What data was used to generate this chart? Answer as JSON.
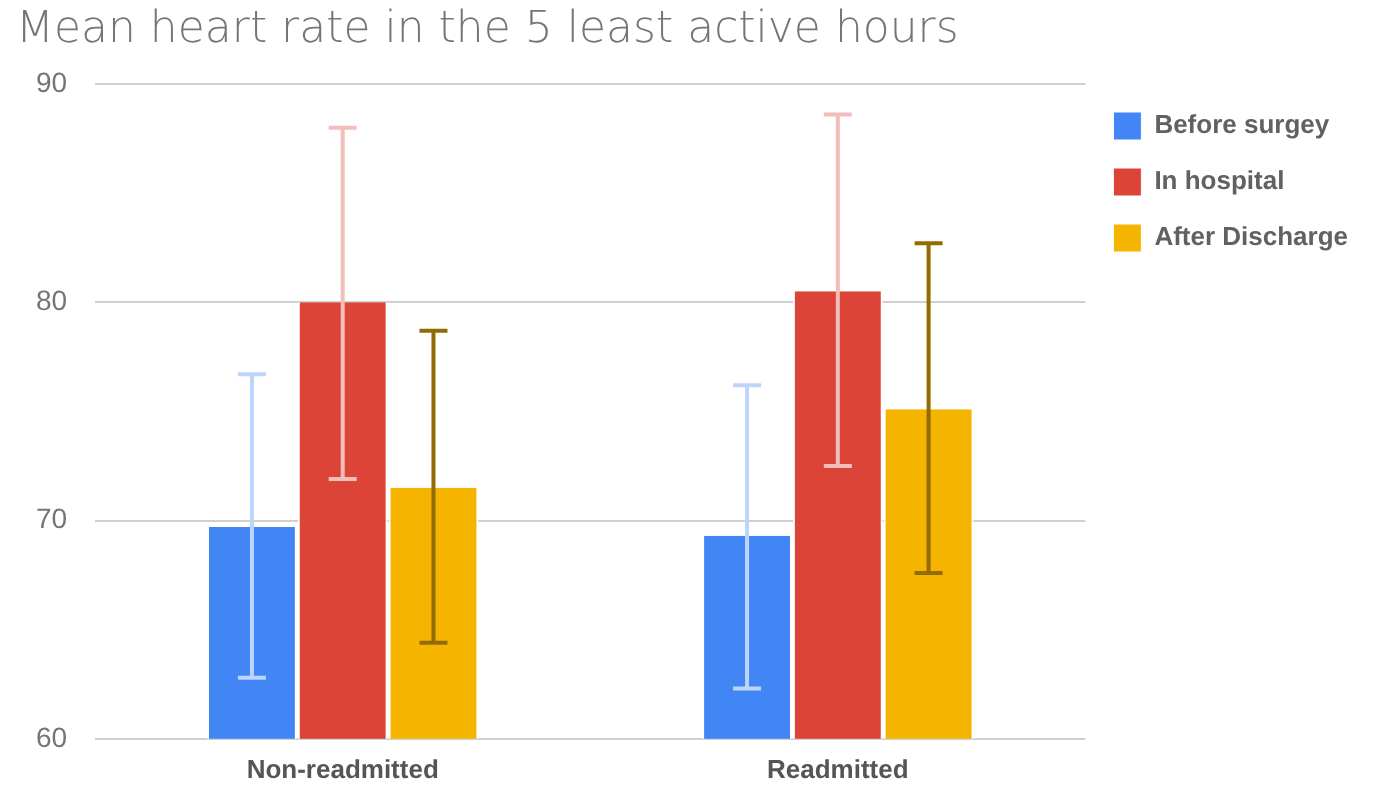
{
  "chart_data": {
    "type": "bar",
    "title": "Mean heart rate in the 5 least active hours",
    "categories": [
      "Non-readmitted",
      "Readmitted"
    ],
    "series": [
      {
        "name": "Before surgey",
        "color": "#4285f4",
        "values": [
          69.7,
          69.3
        ],
        "errors": [
          [
            62.8,
            76.7
          ],
          [
            62.3,
            76.2
          ]
        ]
      },
      {
        "name": "In hospital",
        "color": "#db4437",
        "values": [
          80.0,
          80.5
        ],
        "errors": [
          [
            71.9,
            88.0
          ],
          [
            72.5,
            88.6
          ]
        ]
      },
      {
        "name": "After Discharge",
        "color": "#f4b400",
        "values": [
          71.5,
          75.1
        ],
        "errors": [
          [
            64.4,
            78.7
          ],
          [
            67.6,
            82.7
          ]
        ]
      }
    ],
    "ylim": [
      60,
      90
    ],
    "yticks": [
      60,
      70,
      80,
      90
    ],
    "grid": "y",
    "legend": "top right"
  }
}
